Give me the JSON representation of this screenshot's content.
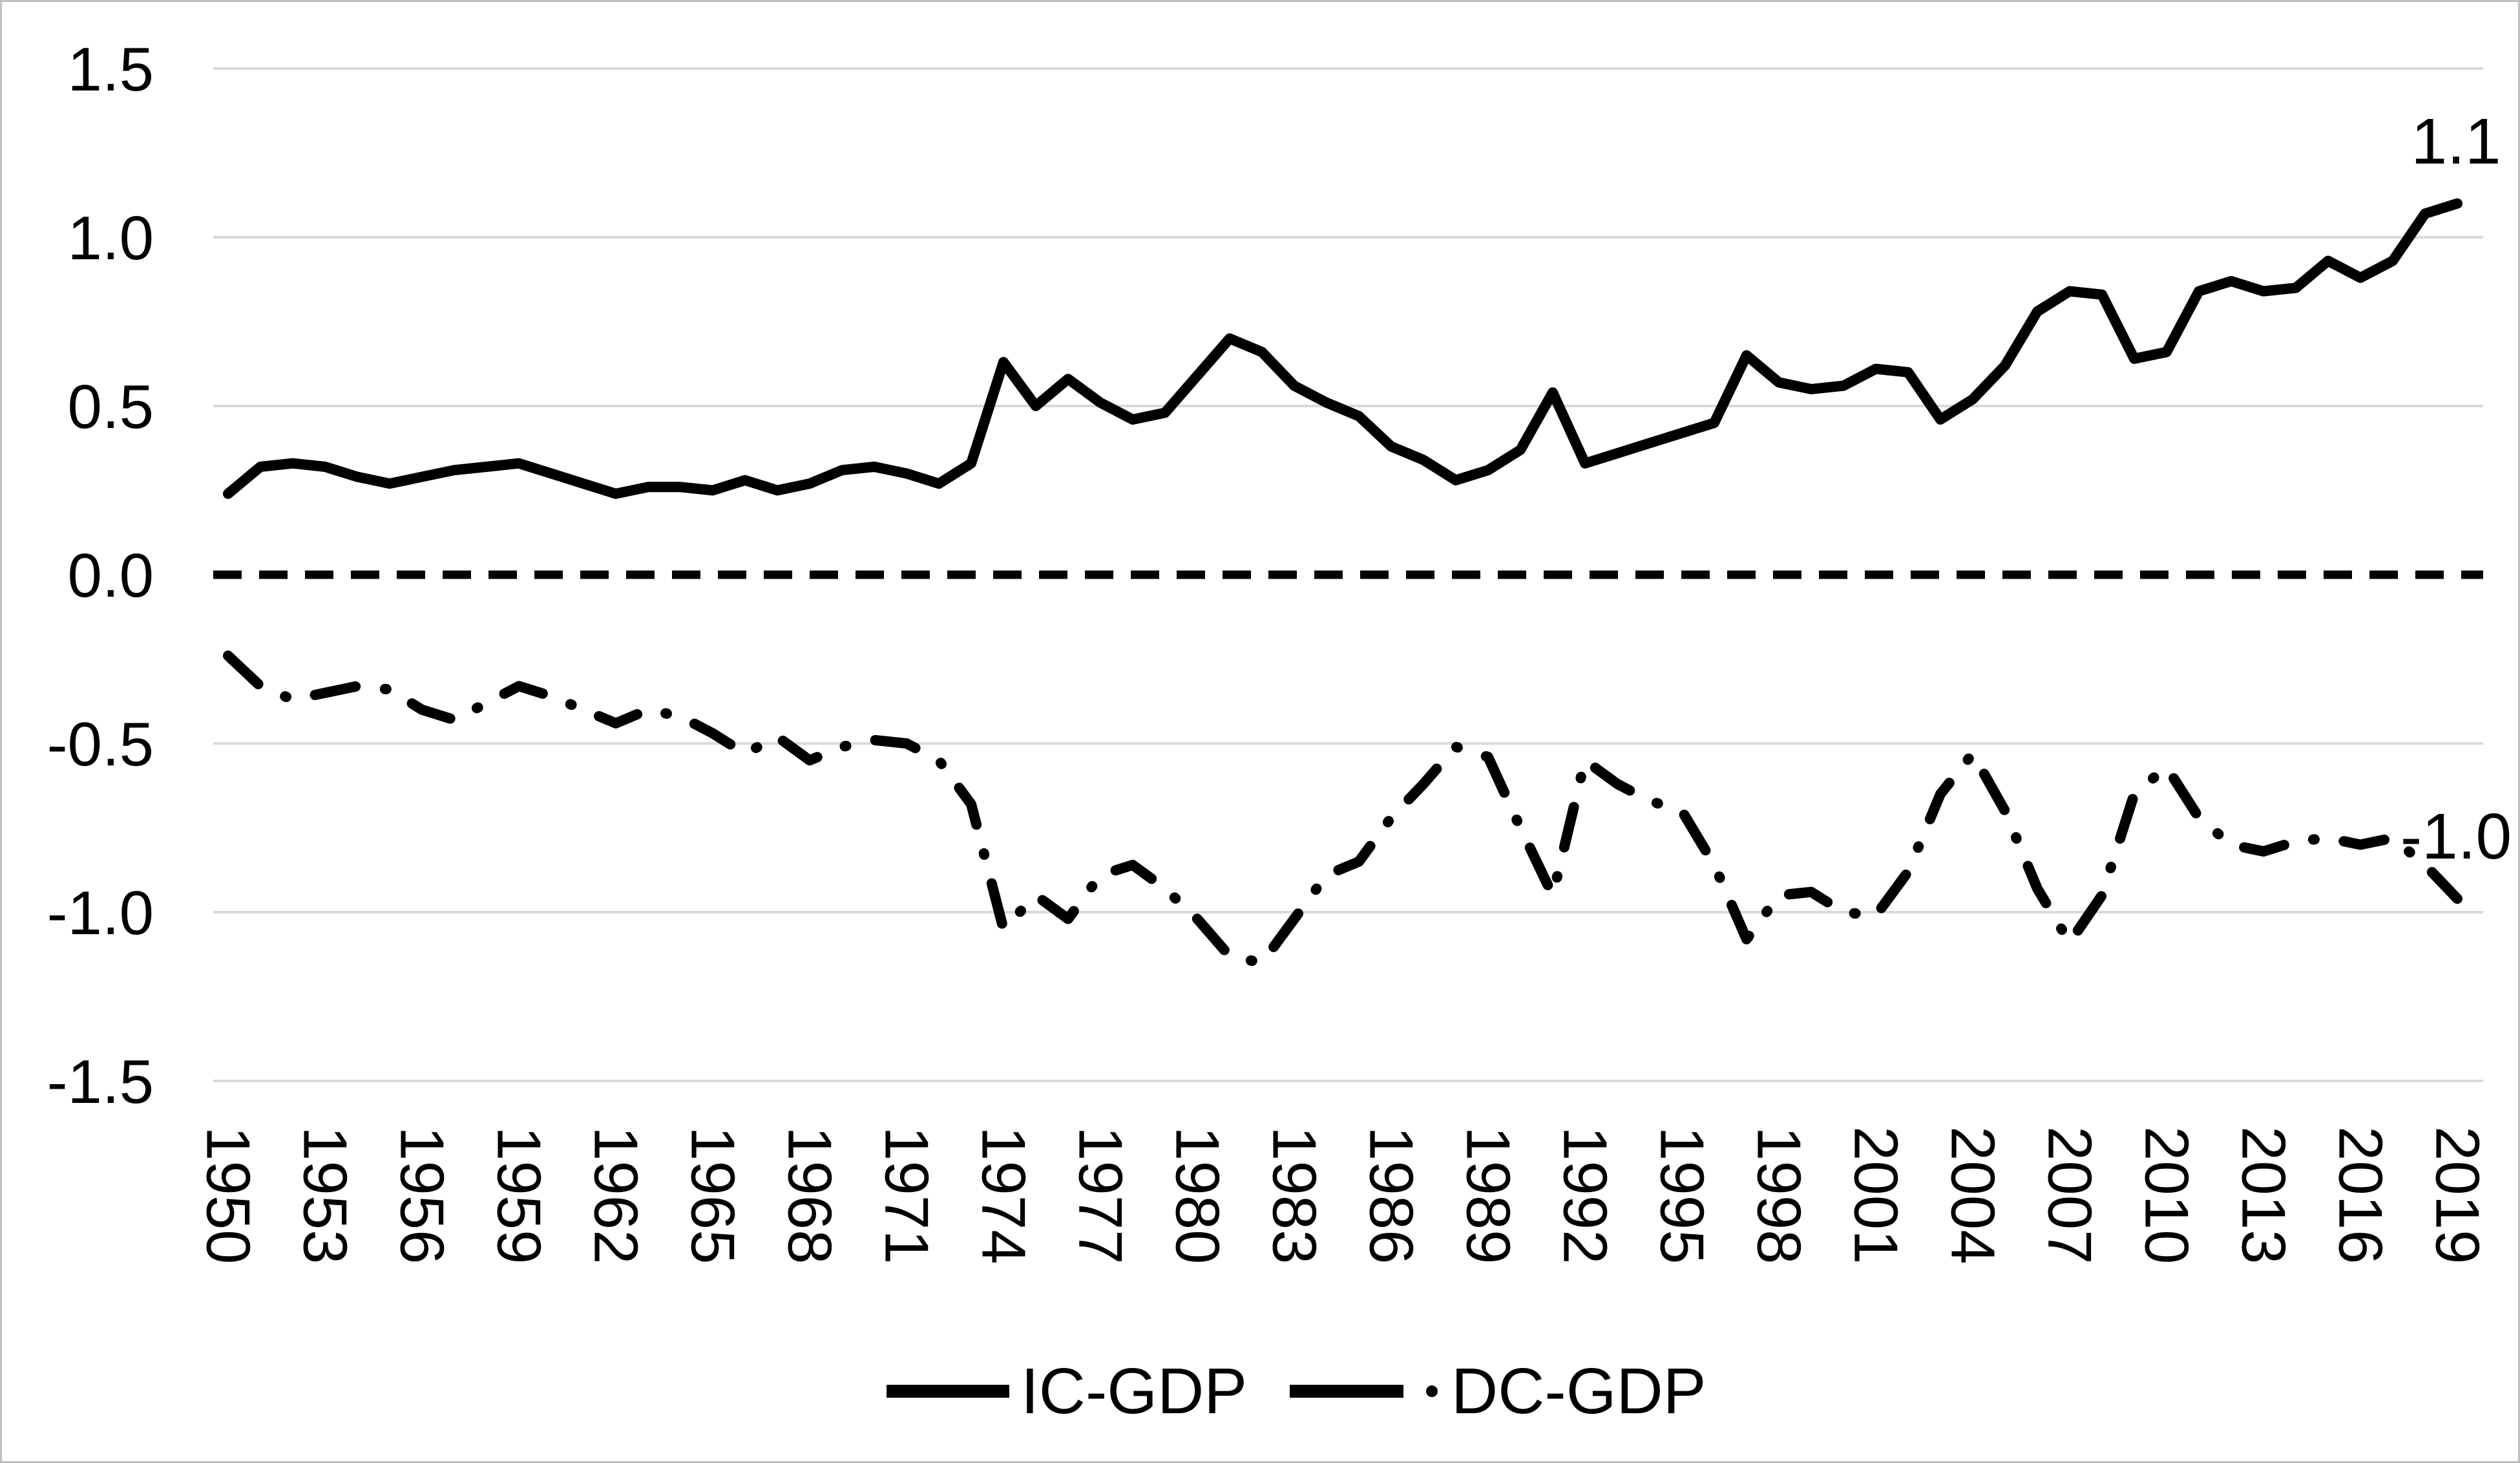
{
  "chart_data": {
    "type": "line",
    "title": "",
    "xlabel": "",
    "ylabel": "",
    "x": [
      1950,
      1951,
      1952,
      1953,
      1954,
      1955,
      1956,
      1957,
      1958,
      1959,
      1960,
      1961,
      1962,
      1963,
      1964,
      1965,
      1966,
      1967,
      1968,
      1969,
      1970,
      1971,
      1972,
      1973,
      1974,
      1975,
      1976,
      1977,
      1978,
      1979,
      1980,
      1981,
      1982,
      1983,
      1984,
      1985,
      1986,
      1987,
      1988,
      1989,
      1990,
      1991,
      1992,
      1993,
      1994,
      1995,
      1996,
      1997,
      1998,
      1999,
      2000,
      2001,
      2002,
      2003,
      2004,
      2005,
      2006,
      2007,
      2008,
      2009,
      2010,
      2011,
      2012,
      2013,
      2014,
      2015,
      2016,
      2017,
      2018,
      2019
    ],
    "series": [
      {
        "name": "IC-GDP",
        "style": "solid",
        "color": "#000000",
        "values": [
          0.24,
          0.32,
          0.33,
          0.32,
          0.29,
          0.27,
          0.29,
          0.31,
          0.32,
          0.33,
          0.3,
          0.27,
          0.24,
          0.26,
          0.26,
          0.25,
          0.28,
          0.25,
          0.27,
          0.31,
          0.32,
          0.3,
          0.27,
          0.33,
          0.63,
          0.5,
          0.58,
          0.51,
          0.46,
          0.48,
          0.59,
          0.7,
          0.66,
          0.56,
          0.51,
          0.47,
          0.38,
          0.34,
          0.28,
          0.31,
          0.37,
          0.54,
          0.33,
          0.36,
          0.39,
          0.42,
          0.45,
          0.65,
          0.57,
          0.55,
          0.56,
          0.61,
          0.6,
          0.46,
          0.52,
          0.62,
          0.78,
          0.84,
          0.83,
          0.64,
          0.66,
          0.84,
          0.87,
          0.84,
          0.85,
          0.93,
          0.88,
          0.93,
          1.07,
          1.1
        ]
      },
      {
        "name": "DC-GDP",
        "style": "dash-dot",
        "color": "#000000",
        "values": [
          -0.24,
          -0.33,
          -0.37,
          -0.35,
          -0.33,
          -0.34,
          -0.4,
          -0.43,
          -0.38,
          -0.33,
          -0.36,
          -0.4,
          -0.44,
          -0.4,
          -0.42,
          -0.47,
          -0.53,
          -0.48,
          -0.55,
          -0.51,
          -0.49,
          -0.5,
          -0.55,
          -0.68,
          -1.05,
          -0.95,
          -1.02,
          -0.89,
          -0.86,
          -0.93,
          -1.02,
          -1.13,
          -1.15,
          -1.02,
          -0.89,
          -0.85,
          -0.72,
          -0.62,
          -0.51,
          -0.54,
          -0.75,
          -0.95,
          -0.55,
          -0.62,
          -0.67,
          -0.7,
          -0.86,
          -1.08,
          -0.95,
          -0.94,
          -1.0,
          -1.01,
          -0.88,
          -0.65,
          -0.53,
          -0.7,
          -0.93,
          -1.09,
          -0.95,
          -0.65,
          -0.57,
          -0.72,
          -0.8,
          -0.82,
          -0.79,
          -0.78,
          -0.8,
          -0.78,
          -0.86,
          -0.96
        ]
      }
    ],
    "ylim": [
      -1.5,
      1.5
    ],
    "yticks": [
      1.5,
      1.0,
      0.5,
      0.0,
      -0.5,
      -1.0,
      -1.5
    ],
    "ytick_labels": [
      "1.5",
      "1.0",
      "0.5",
      "0.0",
      "-0.5",
      "-1.0",
      "-1.5"
    ],
    "xtick_years": [
      1950,
      1953,
      1956,
      1959,
      1962,
      1965,
      1968,
      1971,
      1974,
      1977,
      1980,
      1983,
      1986,
      1989,
      1992,
      1995,
      1998,
      2001,
      2004,
      2007,
      2010,
      2013,
      2016,
      2019
    ],
    "grid": true,
    "zero_line_dashed": true,
    "legend_position": "bottom-center",
    "legend": [
      {
        "label": "IC-GDP",
        "swatch": "solid-line"
      },
      {
        "label": "DC-GDP",
        "swatch": "dash-dot-line"
      }
    ],
    "annotations": [
      {
        "text": "1.1",
        "series": "IC-GDP",
        "year": 2019
      },
      {
        "text": "-1.0",
        "series": "DC-GDP",
        "year": 2019
      }
    ],
    "colors": {
      "line": "#000000",
      "grid": "#d9d9d9",
      "background": "#ffffff",
      "border": "#bfbfbf",
      "text": "#000000"
    }
  }
}
